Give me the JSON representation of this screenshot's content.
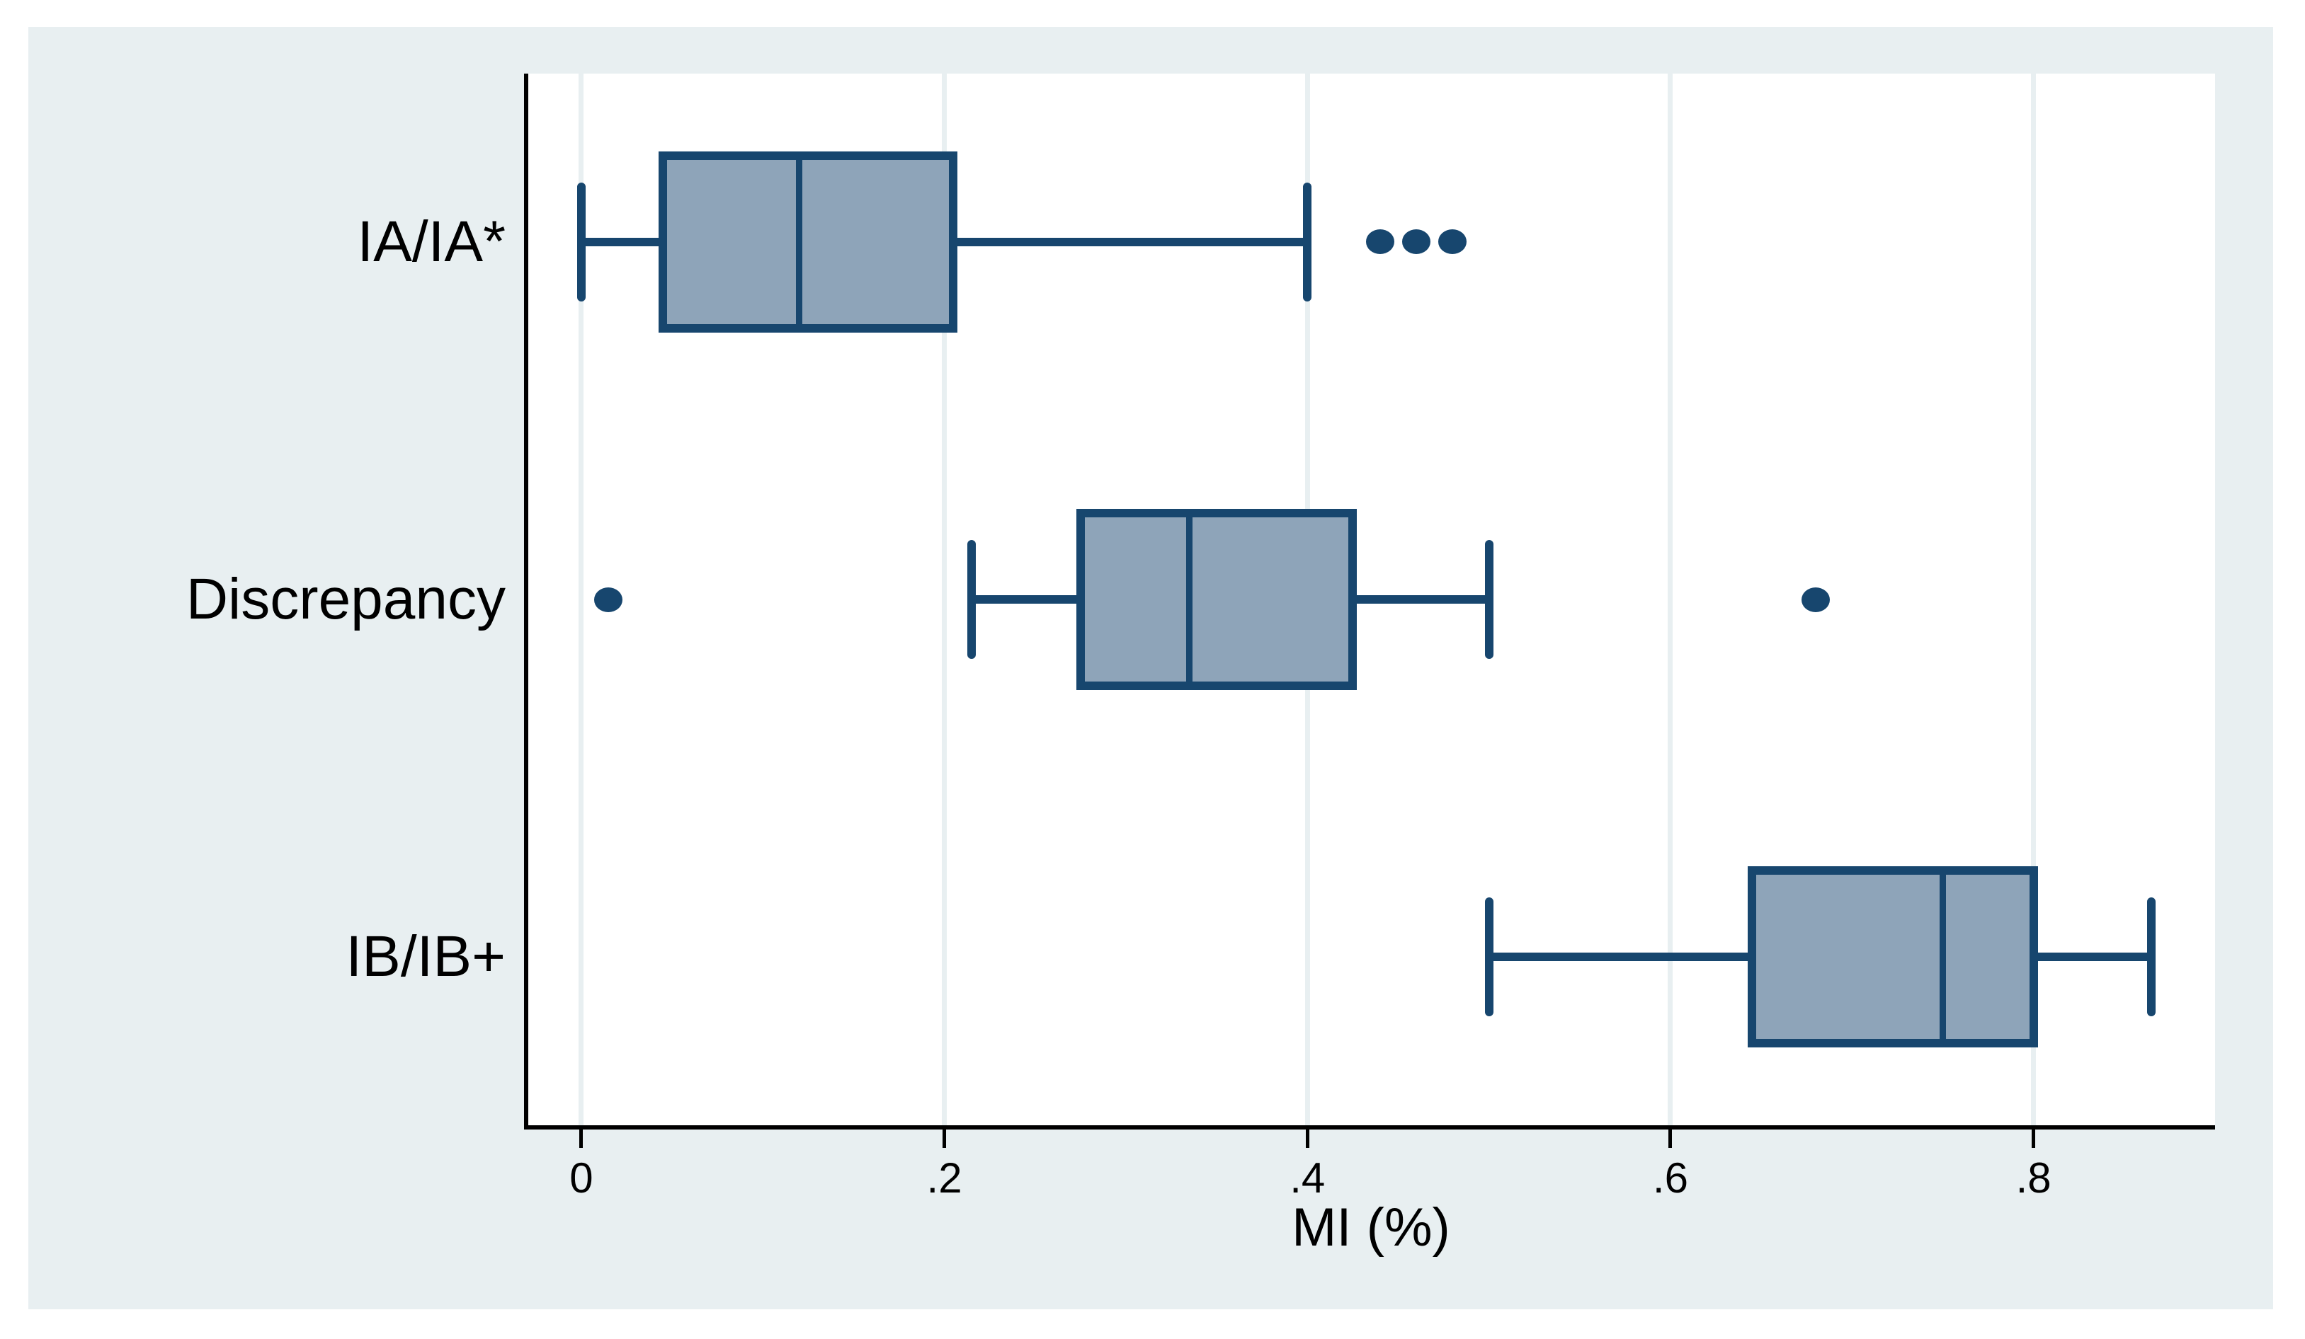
{
  "chart_data": {
    "type": "box",
    "orientation": "horizontal",
    "title": "",
    "xlabel": "MI (%)",
    "ylabel": "",
    "categories": [
      "IA/IA*",
      "Discrepancy",
      "IB/IB+"
    ],
    "series": [
      {
        "category": "IA/IA*",
        "whisker_low": 0,
        "q1": 0.045,
        "median": 0.12,
        "q3": 0.205,
        "whisker_high": 0.4,
        "outliers": [
          0.44,
          0.46,
          0.48
        ]
      },
      {
        "category": "Discrepancy",
        "whisker_low": 0.215,
        "q1": 0.275,
        "median": 0.335,
        "q3": 0.425,
        "whisker_high": 0.5,
        "outliers": [
          0.015,
          0.68
        ]
      },
      {
        "category": "IB/IB+",
        "whisker_low": 0.5,
        "q1": 0.645,
        "median": 0.75,
        "q3": 0.8,
        "whisker_high": 0.865,
        "outliers": []
      }
    ],
    "x_ticks": {
      "values": [
        0,
        0.2,
        0.4,
        0.6,
        0.8
      ],
      "labels": [
        "0",
        ".2",
        ".4",
        ".6",
        ".8"
      ]
    },
    "xlim": [
      -0.03,
      0.9
    ],
    "grid": true,
    "legend": "none",
    "colors": {
      "graph_bg": "#E8EFF1",
      "plot_bg": "#FFFFFF",
      "grid_line": "#E8EFF1",
      "box_fill": "#8EA4B9",
      "box_line": "#17466E",
      "axis_line": "#000000",
      "axis_text": "#000000"
    }
  }
}
